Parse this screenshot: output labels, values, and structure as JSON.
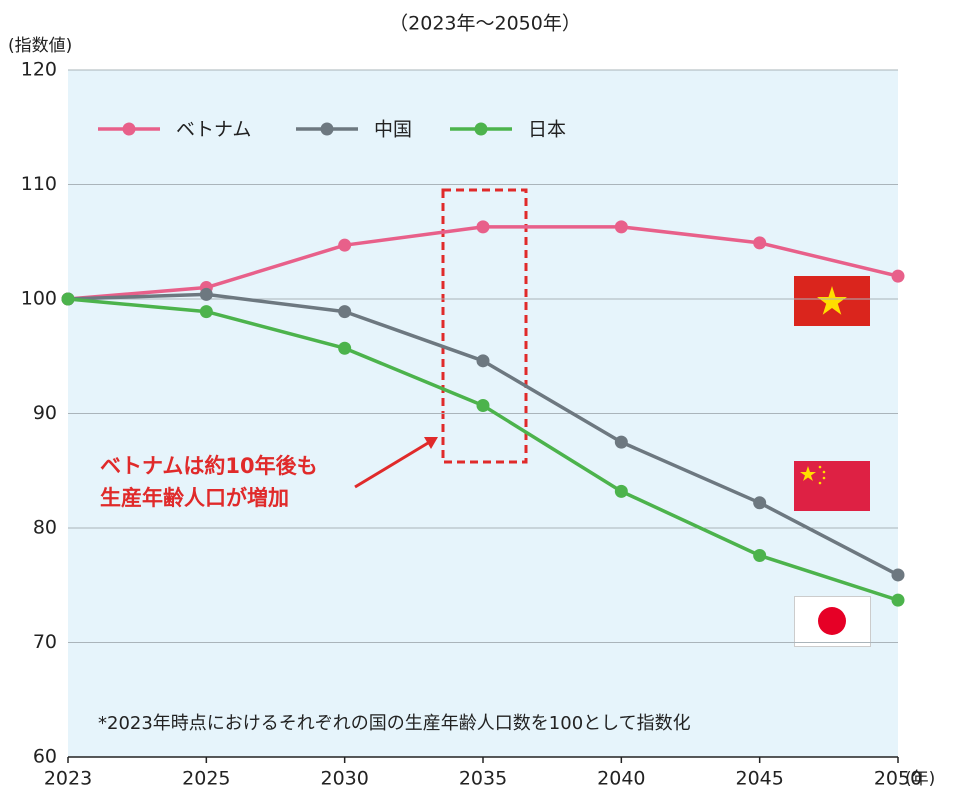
{
  "chart_data": {
    "type": "line",
    "subtitle": "（2023年～2050年）",
    "y_label": "(指数値)",
    "x_label": "(年)",
    "categories": [
      "2023",
      "2025",
      "2030",
      "2035",
      "2040",
      "2045",
      "2050"
    ],
    "series": [
      {
        "name": "ベトナム",
        "color": "#e8608a",
        "values": [
          100,
          101,
          104.7,
          106.3,
          106.3,
          104.9,
          102.0
        ]
      },
      {
        "name": "中国",
        "color": "#6d7880",
        "values": [
          100,
          100.4,
          98.9,
          94.6,
          87.5,
          82.2,
          75.9
        ]
      },
      {
        "name": "日本",
        "color": "#4cb34c",
        "values": [
          100,
          98.9,
          95.7,
          90.7,
          83.2,
          77.6,
          73.7
        ]
      }
    ],
    "ylim": [
      60,
      120
    ],
    "yticks": [
      60,
      70,
      80,
      90,
      100,
      110,
      120
    ],
    "grid": true,
    "legend": "top-left",
    "annotation": [
      "ベトナムは約10年後も",
      "生産年齢人口が増加"
    ],
    "footnote": "*2023年時点におけるそれぞれの国の生産年齢人口数を100として指数化"
  }
}
